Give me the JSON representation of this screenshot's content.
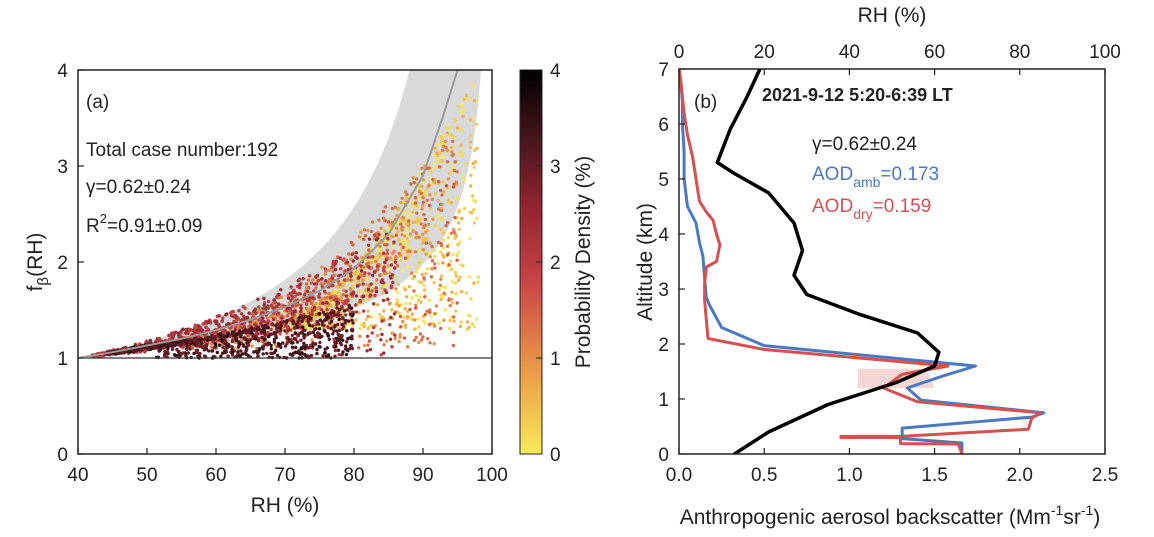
{
  "chart_data": [
    {
      "type": "scatter",
      "panel_label": "(a)",
      "xlabel": "RH (%)",
      "ylabel_main": "f",
      "ylabel_sub": "β",
      "ylabel_tail": "(RH)",
      "xlim": [
        40,
        100
      ],
      "ylim": [
        0,
        4
      ],
      "xticks": [
        40,
        50,
        60,
        70,
        80,
        90,
        100
      ],
      "yticks": [
        0,
        1,
        2,
        3,
        4
      ],
      "annotations": {
        "case_number": "Total case number:192",
        "gamma": "γ=0.62±0.24",
        "r2_prefix": "R",
        "r2_sup": "2",
        "r2_value": "=0.91±0.09"
      },
      "reference_line_y": 1,
      "fit_curve": {
        "gamma": 0.62,
        "gamma_uncertainty": 0.24,
        "x": [
          40,
          45,
          50,
          55,
          60,
          65,
          70,
          75,
          80,
          85,
          90,
          93,
          95,
          96
        ],
        "y": [
          1.0,
          1.06,
          1.13,
          1.2,
          1.29,
          1.4,
          1.53,
          1.7,
          1.93,
          2.29,
          2.9,
          3.54,
          4.0,
          4.0
        ]
      },
      "colorbar": {
        "label": "Probability Density (%)",
        "range": [
          0,
          4
        ],
        "ticks": [
          0,
          1,
          2,
          3,
          4
        ],
        "colors": [
          "#f6ea5a",
          "#eba24a",
          "#c94446",
          "#8e2430",
          "#3a1318",
          "#000000"
        ]
      },
      "point_groups": [
        {
          "density": 3.2,
          "x_range": [
            44,
            80
          ],
          "y_low": [
            1.0,
            1.45
          ],
          "note": "dense core"
        },
        {
          "density": 2.2,
          "x_range": [
            42,
            86
          ],
          "y_low": [
            1.0,
            2.3
          ]
        },
        {
          "density": 1.2,
          "x_range": [
            55,
            95
          ],
          "y_low": [
            1.1,
            3.3
          ]
        },
        {
          "density": 0.3,
          "x_range": [
            70,
            98
          ],
          "y_low": [
            1.3,
            4.0
          ]
        }
      ],
      "colors": {
        "fit_curve": "#9a9a9a",
        "uncertainty_band": "#d9d9d9"
      }
    },
    {
      "type": "line",
      "panel_label": "(b)",
      "title": "2021-9-12 5:20-6:39 LT",
      "xlabel_main": "Anthropogenic aerosol backscatter (Mm",
      "xlabel_sup1": "-1",
      "xlabel_mid": "sr",
      "xlabel_sup2": "-1",
      "xlabel_end": ")",
      "ylabel": "Altitude (km)",
      "top_xlabel": "RH (%)",
      "xlim": [
        0,
        2.5
      ],
      "top_xlim": [
        0,
        100
      ],
      "ylim": [
        0,
        7
      ],
      "xticks": [
        0,
        0.5,
        1.0,
        1.5,
        2.0,
        2.5
      ],
      "xtick_labels": [
        "0.0",
        "0.5",
        "1.0",
        "1.5",
        "2.0",
        "2.5"
      ],
      "top_xticks": [
        0,
        20,
        40,
        60,
        80,
        100
      ],
      "yticks": [
        0,
        1,
        2,
        3,
        4,
        5,
        6,
        7
      ],
      "annotations": {
        "gamma": "γ=0.62±0.24",
        "aod_amb_main": "AOD",
        "aod_amb_sub": "amb",
        "aod_amb_value": "=0.173",
        "aod_dry_main": "AOD",
        "aod_dry_sub": "dry",
        "aod_dry_value": "=0.159"
      },
      "series": [
        {
          "name": "AOD amb",
          "color": "#4a78c2",
          "axis": "bottom",
          "x": [
            1.66,
            1.66,
            1.31,
            1.31,
            2.07,
            2.14,
            1.42,
            1.34,
            1.55,
            1.74,
            0.5,
            0.25,
            0.18,
            0.16,
            0.15,
            0.14,
            0.12,
            0.1,
            0.05,
            0.03,
            0.03,
            0.02,
            0.02,
            0.01,
            0.0
          ],
          "y": [
            0.0,
            0.2,
            0.28,
            0.47,
            0.67,
            0.75,
            0.98,
            1.2,
            1.42,
            1.6,
            1.97,
            2.3,
            2.7,
            2.85,
            3.2,
            3.6,
            3.85,
            4.2,
            4.5,
            5.0,
            5.5,
            6.0,
            6.4,
            6.8,
            7.0
          ]
        },
        {
          "name": "AOD dry",
          "color": "#d6504f",
          "axis": "bottom",
          "x": [
            1.66,
            1.64,
            1.3,
            1.3,
            0.95,
            0.95,
            1.3,
            2.05,
            2.07,
            2.12,
            1.4,
            1.2,
            1.31,
            1.58,
            0.5,
            0.17,
            0.15,
            0.15,
            0.16,
            0.22,
            0.24,
            0.22,
            0.2,
            0.16,
            0.12,
            0.1,
            0.08,
            0.05,
            0.03,
            0.02,
            0.01,
            0.0
          ],
          "y": [
            0.0,
            0.18,
            0.19,
            0.3,
            0.3,
            0.32,
            0.32,
            0.45,
            0.65,
            0.75,
            0.95,
            1.2,
            1.45,
            1.6,
            1.9,
            2.1,
            2.8,
            3.1,
            3.4,
            3.5,
            3.8,
            4.0,
            4.25,
            4.4,
            4.6,
            5.0,
            5.4,
            5.8,
            6.2,
            6.5,
            6.8,
            7.0
          ]
        },
        {
          "name": "RH",
          "color": "#000000",
          "axis": "top",
          "x": [
            13,
            21,
            35,
            51,
            60,
            61,
            56,
            42,
            30,
            27,
            29,
            27,
            21,
            13,
            9,
            12,
            16,
            19
          ],
          "y": [
            0.0,
            0.4,
            0.9,
            1.3,
            1.6,
            1.85,
            2.2,
            2.55,
            2.9,
            3.25,
            3.7,
            4.2,
            4.75,
            5.1,
            5.3,
            5.9,
            6.5,
            7.0
          ]
        }
      ]
    }
  ]
}
